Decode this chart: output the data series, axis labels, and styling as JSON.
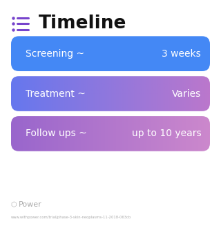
{
  "title": "Timeline",
  "title_fontsize": 19,
  "title_color": "#111111",
  "title_icon_color": "#7744cc",
  "background_color": "#ffffff",
  "rows": [
    {
      "label": "Screening ~",
      "value": "3 weeks",
      "color_left": "#4d8ff5",
      "color_right": "#4d8ff5",
      "gradient": false,
      "solid_color": "#4488f5"
    },
    {
      "label": "Treatment ~",
      "value": "Varies",
      "color_left": "#6677ee",
      "color_right": "#bb77cc",
      "gradient": true
    },
    {
      "label": "Follow ups ~",
      "value": "up to 10 years",
      "color_left": "#9966cc",
      "color_right": "#cc88cc",
      "gradient": true
    }
  ],
  "footer_text": "Power",
  "footer_color": "#aaaaaa",
  "url_text": "www.withpower.com/trial/phase-3-skin-neoplasms-11-2018-063cb",
  "url_color": "#aaaaaa",
  "row_fontsize": 10,
  "icon_color": "#7744cc"
}
